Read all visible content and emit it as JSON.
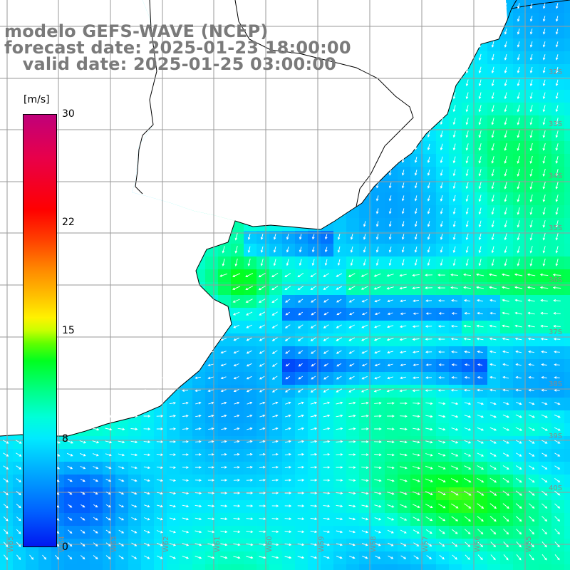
{
  "header": {
    "line1": "modelo GEFS-WAVE (NCEP)",
    "line2": "forecast date: 2025-01-23 18:00:00",
    "line3": "   valid date: 2025-01-25 03:00:00"
  },
  "colorbar": {
    "unit": "[m/s]",
    "ticks": [
      "30",
      "22",
      "15",
      "8",
      "0"
    ],
    "colors": [
      "#0018f0",
      "#00b0ff",
      "#00eaff",
      "#00ff88",
      "#00ff20",
      "#c8ff00",
      "#fff200",
      "#ff8a00",
      "#ff0000",
      "#c0007a"
    ]
  },
  "map": {
    "variable": "wind speed with direction arrows",
    "coastline_color": "#000000",
    "grid_color": "#9a9a9a",
    "land_color": "#ffffff",
    "latitude_labels": [
      "32S",
      "33S",
      "34S",
      "35S",
      "36S",
      "37S",
      "38S",
      "39S",
      "40S"
    ],
    "longitude_labels": [
      "W65",
      "W64",
      "W63",
      "W62",
      "W61",
      "W60",
      "W59",
      "W58",
      "W57",
      "W56",
      "W55"
    ]
  }
}
